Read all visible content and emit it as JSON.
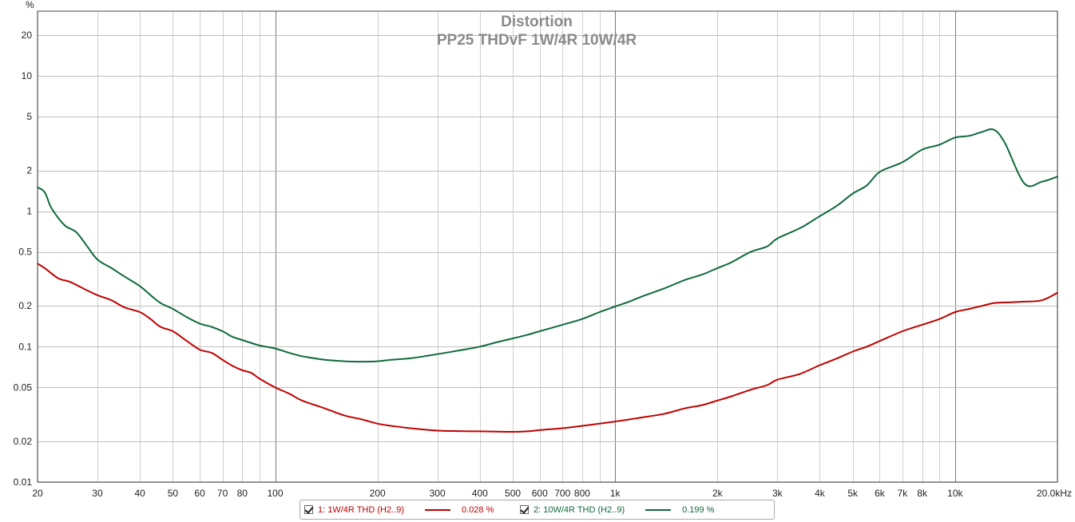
{
  "chart_data": {
    "type": "line",
    "title": "Distortion",
    "subtitle": "PP25 THDvF 1W/4R 10W/4R",
    "y_unit": "%",
    "x_scale": "log",
    "y_scale": "log",
    "xlim": [
      20,
      20000
    ],
    "ylim": [
      0.01,
      30
    ],
    "grid": true,
    "legend_position": "bottom",
    "x_ticks": [
      {
        "value": 20,
        "label": "20",
        "major": false
      },
      {
        "value": 30,
        "label": "30",
        "major": false
      },
      {
        "value": 40,
        "label": "40",
        "major": false
      },
      {
        "value": 50,
        "label": "50",
        "major": false
      },
      {
        "value": 60,
        "label": "60",
        "major": false
      },
      {
        "value": 70,
        "label": "70",
        "major": false
      },
      {
        "value": 80,
        "label": "80",
        "major": false
      },
      {
        "value": 90,
        "label": "",
        "major": false
      },
      {
        "value": 100,
        "label": "100",
        "major": true
      },
      {
        "value": 200,
        "label": "200",
        "major": false
      },
      {
        "value": 300,
        "label": "300",
        "major": false
      },
      {
        "value": 400,
        "label": "400",
        "major": false
      },
      {
        "value": 500,
        "label": "500",
        "major": false
      },
      {
        "value": 600,
        "label": "600",
        "major": false
      },
      {
        "value": 700,
        "label": "700",
        "major": false
      },
      {
        "value": 800,
        "label": "800",
        "major": false
      },
      {
        "value": 900,
        "label": "",
        "major": false
      },
      {
        "value": 1000,
        "label": "1k",
        "major": true
      },
      {
        "value": 2000,
        "label": "2k",
        "major": false
      },
      {
        "value": 3000,
        "label": "3k",
        "major": false
      },
      {
        "value": 4000,
        "label": "4k",
        "major": false
      },
      {
        "value": 5000,
        "label": "5k",
        "major": false
      },
      {
        "value": 6000,
        "label": "6k",
        "major": false
      },
      {
        "value": 7000,
        "label": "7k",
        "major": false
      },
      {
        "value": 8000,
        "label": "8k",
        "major": false
      },
      {
        "value": 9000,
        "label": "",
        "major": false
      },
      {
        "value": 10000,
        "label": "10k",
        "major": true
      },
      {
        "value": 20000,
        "label": "20.0kHz",
        "major": false
      }
    ],
    "y_ticks": [
      {
        "value": 0.01,
        "label": "0.01"
      },
      {
        "value": 0.02,
        "label": "0.02"
      },
      {
        "value": 0.05,
        "label": "0.05"
      },
      {
        "value": 0.1,
        "label": "0.1"
      },
      {
        "value": 0.2,
        "label": "0.2"
      },
      {
        "value": 0.5,
        "label": "0.5"
      },
      {
        "value": 1,
        "label": "1"
      },
      {
        "value": 2,
        "label": "2"
      },
      {
        "value": 5,
        "label": "5"
      },
      {
        "value": 10,
        "label": "10"
      },
      {
        "value": 20,
        "label": "20"
      }
    ],
    "series": [
      {
        "name": "1: 1W/4R THD (H2..9)",
        "color": "#c00000",
        "legend_value": "0.028 %",
        "x": [
          20,
          21,
          23,
          25,
          28,
          30,
          33,
          36,
          40,
          43,
          46,
          50,
          55,
          60,
          65,
          70,
          75,
          80,
          85,
          90,
          100,
          110,
          120,
          140,
          160,
          180,
          200,
          220,
          250,
          300,
          350,
          400,
          450,
          500,
          550,
          600,
          700,
          800,
          900,
          1000,
          1100,
          1200,
          1400,
          1600,
          1800,
          2000,
          2200,
          2500,
          2800,
          3000,
          3500,
          4000,
          4500,
          5000,
          5500,
          6000,
          7000,
          8000,
          9000,
          10000,
          11000,
          12000,
          13000,
          14000,
          16000,
          18000,
          20000
        ],
        "y": [
          0.41,
          0.38,
          0.32,
          0.3,
          0.26,
          0.24,
          0.22,
          0.195,
          0.18,
          0.16,
          0.14,
          0.13,
          0.11,
          0.095,
          0.09,
          0.08,
          0.072,
          0.067,
          0.064,
          0.058,
          0.05,
          0.045,
          0.04,
          0.035,
          0.031,
          0.029,
          0.027,
          0.026,
          0.025,
          0.024,
          0.0238,
          0.0237,
          0.0236,
          0.0235,
          0.0237,
          0.0242,
          0.025,
          0.026,
          0.027,
          0.028,
          0.029,
          0.03,
          0.032,
          0.035,
          0.037,
          0.04,
          0.043,
          0.048,
          0.052,
          0.057,
          0.063,
          0.073,
          0.082,
          0.092,
          0.1,
          0.11,
          0.13,
          0.145,
          0.16,
          0.18,
          0.19,
          0.2,
          0.21,
          0.212,
          0.215,
          0.22,
          0.25
        ]
      },
      {
        "name": "2: 10W/4R THD (H2..9)",
        "color": "#0f6a3c",
        "legend_value": "0.199 %",
        "x": [
          20,
          21,
          22,
          24,
          26,
          28,
          30,
          33,
          36,
          40,
          43,
          46,
          50,
          55,
          60,
          65,
          70,
          75,
          80,
          90,
          100,
          110,
          120,
          140,
          160,
          180,
          200,
          220,
          250,
          300,
          350,
          400,
          450,
          500,
          550,
          600,
          700,
          800,
          900,
          1000,
          1100,
          1200,
          1400,
          1600,
          1800,
          2000,
          2200,
          2500,
          2800,
          3000,
          3500,
          4000,
          4500,
          5000,
          5500,
          6000,
          7000,
          8000,
          9000,
          10000,
          11000,
          12000,
          13000,
          14000,
          16000,
          18000,
          20000
        ],
        "y": [
          1.5,
          1.38,
          1.05,
          0.79,
          0.7,
          0.55,
          0.44,
          0.38,
          0.33,
          0.28,
          0.24,
          0.21,
          0.19,
          0.165,
          0.148,
          0.14,
          0.13,
          0.118,
          0.112,
          0.102,
          0.097,
          0.09,
          0.085,
          0.08,
          0.078,
          0.0775,
          0.078,
          0.08,
          0.082,
          0.088,
          0.094,
          0.1,
          0.108,
          0.115,
          0.122,
          0.13,
          0.145,
          0.16,
          0.18,
          0.198,
          0.215,
          0.235,
          0.27,
          0.31,
          0.34,
          0.38,
          0.42,
          0.5,
          0.55,
          0.63,
          0.75,
          0.92,
          1.1,
          1.35,
          1.55,
          1.95,
          2.3,
          2.85,
          3.1,
          3.5,
          3.6,
          3.85,
          4.0,
          3.2,
          1.6,
          1.65,
          1.8
        ]
      }
    ]
  }
}
